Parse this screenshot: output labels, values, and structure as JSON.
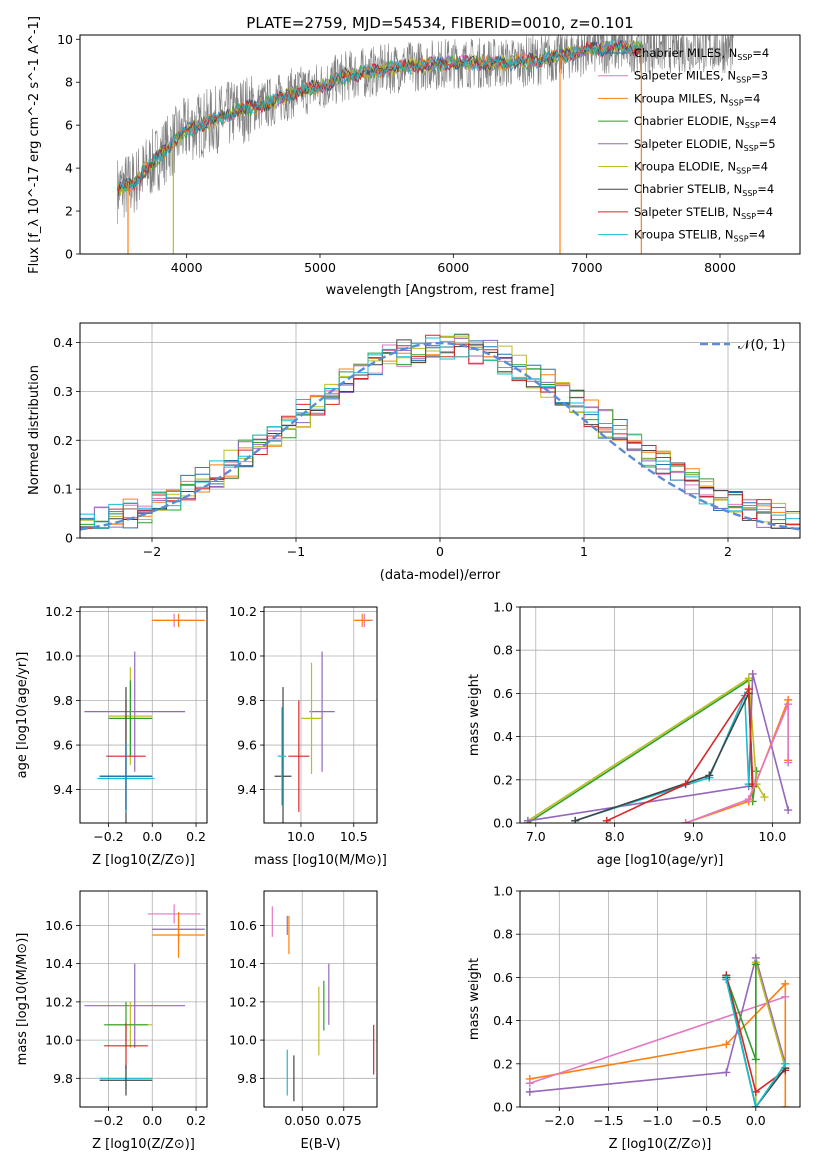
{
  "chart_data": [
    {
      "id": "spectrum",
      "type": "line",
      "title": "PLATE=2759, MJD=54534, FIBERID=0010, z=0.101",
      "xlabel": "wavelength [Angstrom, rest frame]",
      "ylabel": "Flux [f_λ 10^-17 erg cm^-2 s^-1 A^-1]",
      "xlim": [
        3200,
        8600
      ],
      "ylim": [
        0,
        10.2
      ],
      "xticks": [
        4000,
        5000,
        6000,
        7000,
        8000
      ],
      "yticks": [
        0,
        2,
        4,
        6,
        8,
        10
      ],
      "data_anchor_x": [
        3480,
        3600,
        3800,
        4000,
        4200,
        4400,
        4600,
        4800,
        5000,
        5200,
        5400,
        5600,
        5800,
        6000,
        6200,
        6400,
        6600,
        6800,
        7000,
        7200,
        7400
      ],
      "data_anchor_y": [
        3.0,
        3.3,
        4.6,
        5.8,
        6.2,
        6.7,
        7.0,
        7.5,
        7.8,
        8.3,
        8.5,
        8.7,
        8.8,
        8.9,
        8.9,
        8.9,
        9.0,
        9.2,
        9.5,
        9.6,
        9.6
      ],
      "legend": [
        {
          "label": "Chabrier MILES, N_SSP=4",
          "color": "#1f77b4"
        },
        {
          "label": "Salpeter MILES, N_SSP=3",
          "color": "#e377c2"
        },
        {
          "label": "Kroupa MILES, N_SSP=4",
          "color": "#ff7f0e"
        },
        {
          "label": "Chabrier ELODIE, N_SSP=4",
          "color": "#2ca02c"
        },
        {
          "label": "Salpeter ELODIE, N_SSP=5",
          "color": "#9467bd"
        },
        {
          "label": "Kroupa ELODIE, N_SSP=4",
          "color": "#bcbd22"
        },
        {
          "label": "Chabrier STELIB, N_SSP=4",
          "color": "#444444"
        },
        {
          "label": "Salpeter STELIB, N_SSP=4",
          "color": "#d62728"
        },
        {
          "label": "Kroupa STELIB, N_SSP=4",
          "color": "#17becf"
        }
      ],
      "legend_position": "upper right",
      "grid": false
    },
    {
      "id": "residuals",
      "type": "line",
      "xlabel": "(data-model)/error",
      "ylabel": "Normed distribution",
      "xlim": [
        -2.5,
        2.5
      ],
      "ylim": [
        0,
        0.44
      ],
      "xticks": [
        -2,
        -1,
        0,
        1,
        2
      ],
      "yticks": [
        0.0,
        0.1,
        0.2,
        0.3,
        0.4
      ],
      "gaussian_label": "𝒩(0, 1)",
      "gaussian_color": "#5b8dd6",
      "grid": true,
      "legend_position": "upper right"
    },
    {
      "id": "age_vs_Z",
      "type": "scatter",
      "xlabel": "Z [log10(Z/Z⊙)]",
      "ylabel": "age [log10(age/yr)]",
      "xlim": [
        -0.33,
        0.25
      ],
      "ylim": [
        9.25,
        10.22
      ],
      "xticks": [
        -0.2,
        0.0,
        0.2
      ],
      "yticks": [
        9.4,
        9.6,
        9.8,
        10.0,
        10.2
      ],
      "points": [
        {
          "x": 0.1,
          "y": 10.16,
          "xerr": 0.1,
          "yerr": 0.03,
          "color": "#e377c2"
        },
        {
          "x": 0.12,
          "y": 10.16,
          "xerr": 0.12,
          "yerr": 0.03,
          "color": "#ff7f0e"
        },
        {
          "x": -0.08,
          "y": 9.75,
          "xerr": 0.23,
          "yerr": 0.27,
          "color": "#9467bd"
        },
        {
          "x": -0.1,
          "y": 9.73,
          "xerr": 0.1,
          "yerr": 0.22,
          "color": "#bcbd22"
        },
        {
          "x": -0.1,
          "y": 9.72,
          "xerr": 0.1,
          "yerr": 0.17,
          "color": "#2ca02c"
        },
        {
          "x": -0.12,
          "y": 9.55,
          "xerr": 0.09,
          "yerr": 0.25,
          "color": "#d62728"
        },
        {
          "x": -0.12,
          "y": 9.46,
          "xerr": 0.12,
          "yerr": 0.4,
          "color": "#444444"
        },
        {
          "x": -0.12,
          "y": 9.45,
          "xerr": 0.13,
          "yerr": 0.15,
          "color": "#17becf"
        },
        {
          "x": -0.12,
          "y": 9.46,
          "xerr": 0.12,
          "yerr": 0.15,
          "color": "#1f77b4"
        }
      ],
      "grid": true
    },
    {
      "id": "age_vs_mass",
      "type": "scatter",
      "xlabel": "mass [log10(M/M⊙)]",
      "ylabel": "",
      "xlim": [
        9.65,
        10.72
      ],
      "ylim": [
        9.25,
        10.22
      ],
      "xticks": [
        10.0,
        10.5
      ],
      "yticks": [
        9.4,
        9.6,
        9.8,
        10.0,
        10.2
      ],
      "points": [
        {
          "x": 10.6,
          "y": 10.16,
          "xerr": 0.08,
          "yerr": 0.03,
          "color": "#e377c2"
        },
        {
          "x": 10.58,
          "y": 10.16,
          "xerr": 0.08,
          "yerr": 0.03,
          "color": "#ff7f0e"
        },
        {
          "x": 10.2,
          "y": 9.75,
          "xerr": 0.12,
          "yerr": 0.27,
          "color": "#9467bd"
        },
        {
          "x": 10.1,
          "y": 9.72,
          "xerr": 0.1,
          "yerr": 0.25,
          "color": "#bcbd22"
        },
        {
          "x": 9.98,
          "y": 9.55,
          "xerr": 0.1,
          "yerr": 0.25,
          "color": "#d62728"
        },
        {
          "x": 9.83,
          "y": 9.46,
          "xerr": 0.08,
          "yerr": 0.4,
          "color": "#444444"
        },
        {
          "x": 9.82,
          "y": 9.55,
          "xerr": 0.04,
          "yerr": 0.22,
          "color": "#17becf"
        }
      ],
      "grid": true
    },
    {
      "id": "massweight_vs_age",
      "type": "line",
      "xlabel": "age [log10(age/yr)]",
      "ylabel": "mass weight",
      "xlim": [
        6.8,
        10.35
      ],
      "ylim": [
        0,
        1.0
      ],
      "xticks": [
        7,
        8,
        9,
        10
      ],
      "yticks": [
        0.0,
        0.2,
        0.4,
        0.6,
        0.8,
        1.0
      ],
      "series": [
        {
          "color": "#2ca02c",
          "x": [
            6.9,
            9.7,
            9.75,
            9.8
          ],
          "y": [
            0.0,
            0.66,
            0.1,
            0.24
          ]
        },
        {
          "color": "#bcbd22",
          "x": [
            6.9,
            9.7,
            9.8,
            9.9
          ],
          "y": [
            0.01,
            0.67,
            0.18,
            0.12
          ]
        },
        {
          "color": "#9467bd",
          "x": [
            6.9,
            9.7,
            9.75,
            10.2
          ],
          "y": [
            0.01,
            0.17,
            0.69,
            0.06
          ]
        },
        {
          "color": "#17becf",
          "x": [
            7.5,
            9.2,
            9.65,
            9.7
          ],
          "y": [
            0.01,
            0.21,
            0.59,
            0.18
          ]
        },
        {
          "color": "#444444",
          "x": [
            7.5,
            9.2,
            9.7,
            9.75
          ],
          "y": [
            0.01,
            0.22,
            0.6,
            0.17
          ]
        },
        {
          "color": "#d62728",
          "x": [
            7.9,
            8.9,
            9.7,
            9.75
          ],
          "y": [
            0.01,
            0.18,
            0.62,
            0.18
          ]
        },
        {
          "color": "#ff7f0e",
          "x": [
            8.9,
            9.7,
            10.2,
            10.2
          ],
          "y": [
            0.0,
            0.1,
            0.57,
            0.29
          ]
        },
        {
          "color": "#e377c2",
          "x": [
            8.9,
            9.7,
            10.2,
            10.2
          ],
          "y": [
            0.0,
            0.11,
            0.55,
            0.28
          ]
        }
      ],
      "grid": true
    },
    {
      "id": "mass_vs_Z",
      "type": "scatter",
      "xlabel": "Z [log10(Z/Z⊙)]",
      "ylabel": "mass [log10(M/M⊙)]",
      "xlim": [
        -0.33,
        0.25
      ],
      "ylim": [
        9.65,
        10.78
      ],
      "xticks": [
        -0.2,
        0.0,
        0.2
      ],
      "yticks": [
        9.8,
        10.0,
        10.2,
        10.4,
        10.6
      ],
      "points": [
        {
          "x": 0.1,
          "y": 10.66,
          "xerr": 0.12,
          "yerr": 0.05,
          "color": "#e377c2"
        },
        {
          "x": 0.12,
          "y": 10.58,
          "xerr": 0.12,
          "yerr": 0.07,
          "color": "#9467bd"
        },
        {
          "x": 0.12,
          "y": 10.55,
          "xerr": 0.12,
          "yerr": 0.12,
          "color": "#ff7f0e"
        },
        {
          "x": -0.08,
          "y": 10.18,
          "xerr": 0.23,
          "yerr": 0.22,
          "color": "#9467bd"
        },
        {
          "x": -0.1,
          "y": 10.08,
          "xerr": 0.1,
          "yerr": 0.12,
          "color": "#bcbd22"
        },
        {
          "x": -0.12,
          "y": 10.08,
          "xerr": 0.1,
          "yerr": 0.12,
          "color": "#2ca02c"
        },
        {
          "x": -0.12,
          "y": 9.97,
          "xerr": 0.1,
          "yerr": 0.12,
          "color": "#d62728"
        },
        {
          "x": -0.12,
          "y": 9.8,
          "xerr": 0.12,
          "yerr": 0.06,
          "color": "#17becf"
        },
        {
          "x": -0.12,
          "y": 9.79,
          "xerr": 0.12,
          "yerr": 0.08,
          "color": "#444444"
        }
      ],
      "grid": true
    },
    {
      "id": "mass_vs_ebv",
      "type": "scatter",
      "xlabel": "E(B-V)",
      "ylabel": "",
      "xlim": [
        0.027,
        0.095
      ],
      "ylim": [
        9.65,
        10.78
      ],
      "xticks": [
        0.05,
        0.075
      ],
      "yticks": [
        9.8,
        10.0,
        10.2,
        10.4,
        10.6
      ],
      "points": [
        {
          "x": 0.032,
          "y": 10.62,
          "yerr": 0.08,
          "color": "#e377c2"
        },
        {
          "x": 0.041,
          "y": 10.6,
          "yerr": 0.05,
          "color": "#9467bd"
        },
        {
          "x": 0.042,
          "y": 10.55,
          "yerr": 0.1,
          "color": "#ff7f0e"
        },
        {
          "x": 0.066,
          "y": 10.24,
          "yerr": 0.16,
          "color": "#9467bd"
        },
        {
          "x": 0.063,
          "y": 10.18,
          "yerr": 0.13,
          "color": "#2ca02c"
        },
        {
          "x": 0.06,
          "y": 10.1,
          "yerr": 0.18,
          "color": "#bcbd22"
        },
        {
          "x": 0.093,
          "y": 9.95,
          "yerr": 0.13,
          "color": "#d62728"
        },
        {
          "x": 0.041,
          "y": 9.83,
          "yerr": 0.12,
          "color": "#17becf"
        },
        {
          "x": 0.045,
          "y": 9.8,
          "yerr": 0.12,
          "color": "#444444"
        }
      ],
      "grid": true
    },
    {
      "id": "massweight_vs_Z",
      "type": "line",
      "xlabel": "Z [log10(Z/Z⊙)]",
      "ylabel": "mass weight",
      "xlim": [
        -2.4,
        0.45
      ],
      "ylim": [
        0,
        1.0
      ],
      "xticks": [
        -2.0,
        -1.5,
        -1.0,
        -0.5,
        0.0
      ],
      "yticks": [
        0.0,
        0.2,
        0.4,
        0.6,
        0.8,
        1.0
      ],
      "series": [
        {
          "color": "#ff7f0e",
          "x": [
            -2.3,
            -0.3,
            0.3,
            0.3
          ],
          "y": [
            0.13,
            0.29,
            0.57,
            0.0
          ]
        },
        {
          "color": "#e377c2",
          "x": [
            -2.3,
            0.3
          ],
          "y": [
            0.11,
            0.51
          ]
        },
        {
          "color": "#9467bd",
          "x": [
            -2.3,
            -0.3,
            0.0,
            0.3
          ],
          "y": [
            0.07,
            0.16,
            0.69,
            0.2
          ]
        },
        {
          "color": "#bcbd22",
          "x": [
            -0.3,
            0.0,
            0.0,
            0.3
          ],
          "y": [
            0.59,
            0.0,
            0.67,
            0.18
          ]
        },
        {
          "color": "#2ca02c",
          "x": [
            -0.3,
            0.0,
            0.0
          ],
          "y": [
            0.6,
            0.22,
            0.66
          ]
        },
        {
          "color": "#d62728",
          "x": [
            -0.3,
            0.0,
            0.3
          ],
          "y": [
            0.61,
            0.07,
            0.17
          ]
        },
        {
          "color": "#444444",
          "x": [
            -0.3,
            0.0,
            0.3
          ],
          "y": [
            0.6,
            0.0,
            0.18
          ]
        },
        {
          "color": "#17becf",
          "x": [
            -0.3,
            0.0,
            0.3
          ],
          "y": [
            0.59,
            0.0,
            0.2
          ]
        }
      ],
      "grid": true
    }
  ]
}
